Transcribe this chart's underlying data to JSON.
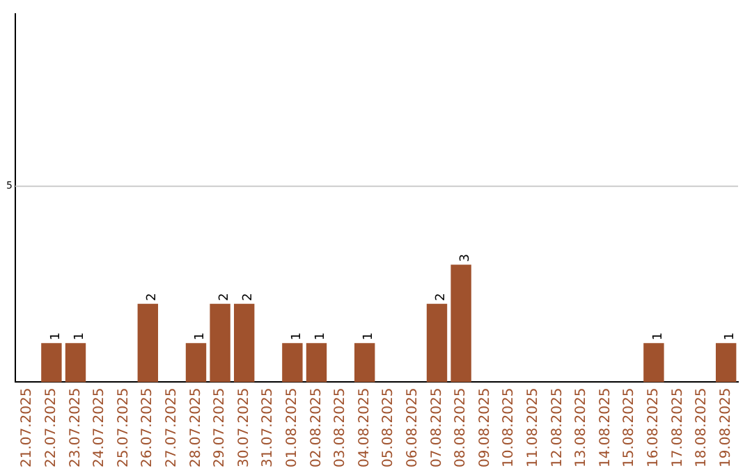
{
  "chart_data": {
    "type": "bar",
    "categories": [
      "21.07.2025",
      "22.07.2025",
      "23.07.2025",
      "24.07.2025",
      "25.07.2025",
      "26.07.2025",
      "27.07.2025",
      "28.07.2025",
      "29.07.2025",
      "30.07.2025",
      "31.07.2025",
      "01.08.2025",
      "02.08.2025",
      "03.08.2025",
      "04.08.2025",
      "05.08.2025",
      "06.08.2025",
      "07.08.2025",
      "08.08.2025",
      "09.08.2025",
      "10.08.2025",
      "11.08.2025",
      "12.08.2025",
      "13.08.2025",
      "14.08.2025",
      "15.08.2025",
      "16.08.2025",
      "17.08.2025",
      "18.08.2025",
      "19.08.2025"
    ],
    "values": [
      0,
      1,
      1,
      0,
      0,
      2,
      0,
      1,
      2,
      2,
      0,
      1,
      1,
      0,
      1,
      0,
      0,
      2,
      3,
      0,
      0,
      0,
      0,
      0,
      0,
      0,
      1,
      0,
      0,
      1
    ],
    "value_labels": [
      null,
      "1",
      "1",
      null,
      null,
      "2",
      null,
      "1",
      "2",
      "2",
      null,
      "1",
      "1",
      null,
      "1",
      null,
      null,
      "2",
      "3",
      null,
      null,
      null,
      null,
      null,
      null,
      null,
      "1",
      null,
      null,
      "1"
    ],
    "color": "#a0522d",
    "ylim": [
      0,
      9.4
    ],
    "ref_lines": [
      {
        "axis": "y",
        "value": 5,
        "label": "5",
        "color": "#cccccc"
      }
    ],
    "legend": false
  }
}
